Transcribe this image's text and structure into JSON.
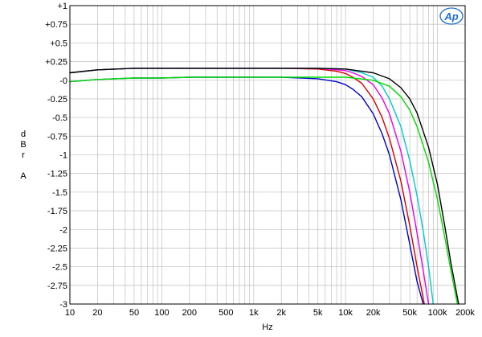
{
  "chart_data": {
    "type": "line",
    "title": "",
    "xlabel": "Hz",
    "ylabel_letters": [
      "d",
      "B",
      "r",
      "A"
    ],
    "x_scale": "log",
    "xlim": [
      10,
      200000
    ],
    "ylim": [
      -3,
      1
    ],
    "grid": true,
    "x_ticks": [
      {
        "value": 10,
        "label": "10"
      },
      {
        "value": 20,
        "label": "20"
      },
      {
        "value": 50,
        "label": "50"
      },
      {
        "value": 100,
        "label": "100"
      },
      {
        "value": 200,
        "label": "200"
      },
      {
        "value": 500,
        "label": "500"
      },
      {
        "value": 1000,
        "label": "1k"
      },
      {
        "value": 2000,
        "label": "2k"
      },
      {
        "value": 5000,
        "label": "5k"
      },
      {
        "value": 10000,
        "label": "10k"
      },
      {
        "value": 20000,
        "label": "20k"
      },
      {
        "value": 50000,
        "label": "50k"
      },
      {
        "value": 100000,
        "label": "100k"
      },
      {
        "value": 200000,
        "label": "200k"
      }
    ],
    "y_ticks": [
      {
        "value": 1,
        "label": "+1"
      },
      {
        "value": 0.75,
        "label": "+0.75"
      },
      {
        "value": 0.5,
        "label": "+0.5"
      },
      {
        "value": 0.25,
        "label": "+0.25"
      },
      {
        "value": 0,
        "label": "-0"
      },
      {
        "value": -0.25,
        "label": "-0.25"
      },
      {
        "value": -0.5,
        "label": "-0.5"
      },
      {
        "value": -0.75,
        "label": "-0.75"
      },
      {
        "value": -1,
        "label": "-1"
      },
      {
        "value": -1.25,
        "label": "-1.25"
      },
      {
        "value": -1.5,
        "label": "-1.5"
      },
      {
        "value": -1.75,
        "label": "-1.75"
      },
      {
        "value": -2,
        "label": "-2"
      },
      {
        "value": -2.25,
        "label": "-2.25"
      },
      {
        "value": -2.5,
        "label": "-2.5"
      },
      {
        "value": -2.75,
        "label": "-2.75"
      },
      {
        "value": -3,
        "label": "-3"
      }
    ],
    "series": [
      {
        "color": "#0000cc",
        "x": [
          10,
          20,
          50,
          100,
          200,
          500,
          1000,
          2000,
          5000,
          8000,
          10000,
          12000,
          15000,
          20000,
          25000,
          30000,
          40000,
          50000,
          60000,
          70000
        ],
        "y": [
          -0.02,
          0.01,
          0.03,
          0.03,
          0.04,
          0.04,
          0.04,
          0.04,
          0.02,
          -0.02,
          -0.06,
          -0.12,
          -0.22,
          -0.45,
          -0.72,
          -1.0,
          -1.6,
          -2.2,
          -2.7,
          -3.0
        ]
      },
      {
        "color": "#dd0000",
        "x": [
          10,
          20,
          50,
          100,
          200,
          500,
          1000,
          2000,
          5000,
          8000,
          10000,
          12000,
          15000,
          20000,
          25000,
          30000,
          40000,
          50000,
          60000,
          72000
        ],
        "y": [
          0.1,
          0.14,
          0.16,
          0.16,
          0.16,
          0.16,
          0.16,
          0.16,
          0.15,
          0.12,
          0.09,
          0.04,
          -0.04,
          -0.25,
          -0.5,
          -0.78,
          -1.35,
          -1.95,
          -2.5,
          -3.0
        ]
      },
      {
        "color": "#ee00ee",
        "x": [
          10,
          20,
          50,
          100,
          200,
          500,
          1000,
          2000,
          5000,
          10000,
          12000,
          15000,
          20000,
          25000,
          30000,
          40000,
          50000,
          60000,
          70000,
          80000
        ],
        "y": [
          0.1,
          0.14,
          0.16,
          0.16,
          0.16,
          0.16,
          0.16,
          0.16,
          0.16,
          0.13,
          0.1,
          0.05,
          -0.06,
          -0.24,
          -0.45,
          -0.95,
          -1.5,
          -2.05,
          -2.55,
          -3.0
        ]
      },
      {
        "color": "#00cccc",
        "x": [
          10,
          20,
          50,
          100,
          200,
          500,
          1000,
          2000,
          5000,
          10000,
          15000,
          20000,
          25000,
          30000,
          40000,
          50000,
          60000,
          70000,
          80000,
          90000
        ],
        "y": [
          0.1,
          0.14,
          0.16,
          0.16,
          0.16,
          0.16,
          0.16,
          0.16,
          0.16,
          0.15,
          0.1,
          0.04,
          -0.08,
          -0.25,
          -0.62,
          -1.08,
          -1.55,
          -2.02,
          -2.5,
          -3.0
        ]
      },
      {
        "color": "#00dd00",
        "x": [
          10,
          20,
          50,
          100,
          200,
          500,
          1000,
          2000,
          5000,
          10000,
          20000,
          30000,
          40000,
          50000,
          60000,
          80000,
          100000,
          120000,
          140000,
          165000
        ],
        "y": [
          -0.02,
          0.01,
          0.03,
          0.03,
          0.04,
          0.04,
          0.04,
          0.04,
          0.04,
          0.04,
          0.0,
          -0.08,
          -0.22,
          -0.4,
          -0.62,
          -1.1,
          -1.6,
          -2.1,
          -2.55,
          -3.0
        ]
      },
      {
        "color": "#000000",
        "x": [
          10,
          20,
          50,
          100,
          200,
          500,
          1000,
          2000,
          5000,
          10000,
          20000,
          30000,
          40000,
          50000,
          60000,
          80000,
          100000,
          120000,
          140000,
          170000
        ],
        "y": [
          0.1,
          0.14,
          0.16,
          0.16,
          0.16,
          0.16,
          0.16,
          0.16,
          0.16,
          0.15,
          0.1,
          0.02,
          -0.1,
          -0.25,
          -0.44,
          -0.9,
          -1.4,
          -1.95,
          -2.45,
          -3.0
        ]
      }
    ]
  },
  "logo": {
    "text": "Ap",
    "color": "#1a6fd1"
  }
}
